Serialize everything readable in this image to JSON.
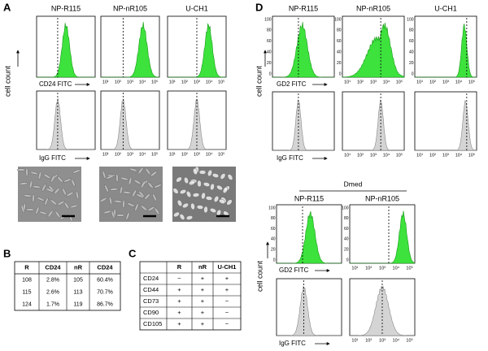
{
  "panel_a": {
    "label": "A",
    "columns": [
      "NP-R115",
      "NP-nR105",
      "U-CH1"
    ],
    "y_label": "cell count",
    "x_labels": [
      "CD24 FITC",
      "IgG FITC"
    ],
    "x_ticks": [
      "10¹",
      "10²",
      "10³",
      "10⁴",
      "10⁵"
    ]
  },
  "panel_b": {
    "label": "B",
    "header": [
      "R",
      "CD24",
      "nR",
      "CD24"
    ],
    "rows": [
      [
        "108",
        "2.8%",
        "105",
        "60.4%"
      ],
      [
        "115",
        "2.6%",
        "113",
        "70.7%"
      ],
      [
        "124",
        "1.7%",
        "119",
        "86.7%"
      ]
    ]
  },
  "panel_c": {
    "label": "C",
    "header": [
      "R",
      "nR",
      "U-CH1"
    ],
    "rows": [
      [
        "CD24",
        "−",
        "+",
        "+"
      ],
      [
        "CD44",
        "+",
        "+",
        "+"
      ],
      [
        "CD73",
        "+",
        "+",
        "−"
      ],
      [
        "CD90",
        "+",
        "+",
        "−"
      ],
      [
        "CD105",
        "+",
        "+",
        "−"
      ]
    ]
  },
  "panel_d": {
    "label": "D",
    "columns": [
      "NP-R115",
      "NP-nR105",
      "U-CH1"
    ],
    "y_label": "cell count",
    "x_labels": [
      "GD2 FITC",
      "IgG FITC"
    ],
    "x_ticks": [
      "10¹",
      "10²",
      "10³",
      "10⁴",
      "10⁵"
    ],
    "y_ticks": [
      "100",
      "80",
      "60",
      "40",
      "20",
      "0"
    ],
    "dmed": {
      "title": "Dmed",
      "columns": [
        "NP-R115",
        "NP-nR105"
      ],
      "y_label": "cell count",
      "x_labels": [
        "GD2 FITC",
        "IgG FITC"
      ]
    }
  }
}
